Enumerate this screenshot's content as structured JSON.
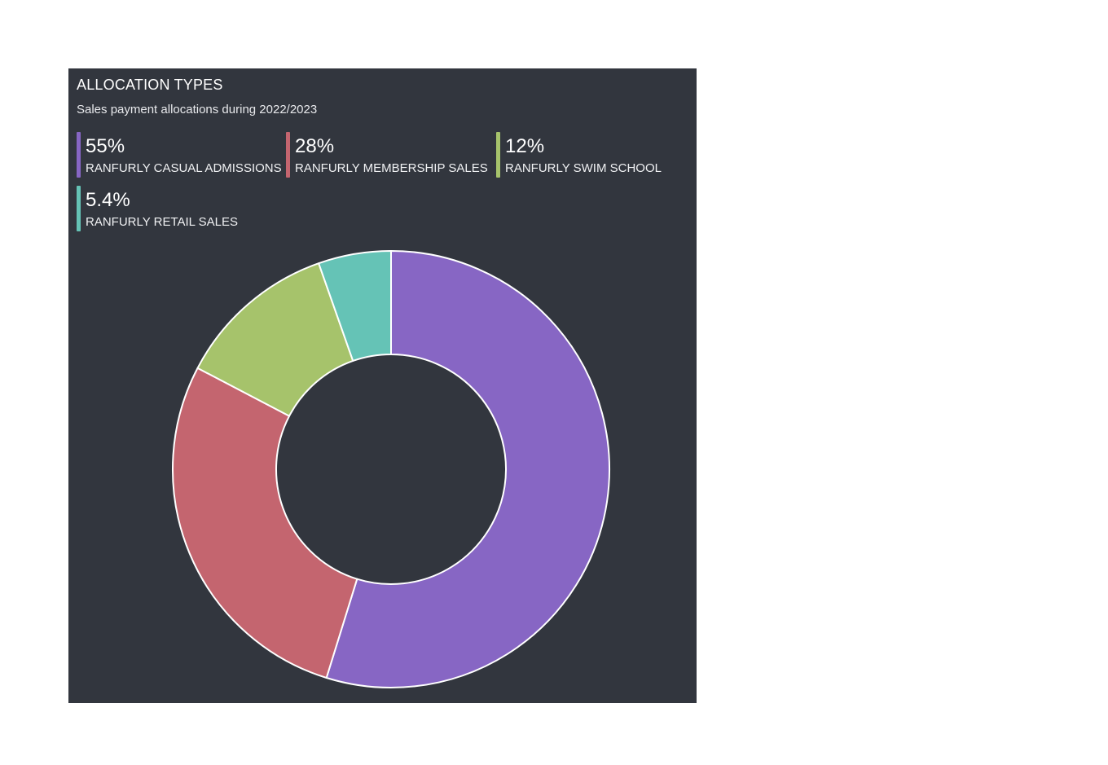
{
  "card": {
    "title": "ALLOCATION TYPES",
    "subtitle": "Sales payment allocations during 2022/2023"
  },
  "chart_data": {
    "type": "pie",
    "variant": "donut",
    "title": "ALLOCATION TYPES",
    "subtitle": "Sales payment allocations during 2022/2023",
    "categories": [
      "RANFURLY CASUAL ADMISSIONS",
      "RANFURLY MEMBERSHIP SALES",
      "RANFURLY SWIM SCHOOL",
      "RANFURLY RETAIL SALES"
    ],
    "values": [
      55,
      28,
      12,
      5.4
    ],
    "value_labels": [
      "55%",
      "28%",
      "12%",
      "5.4%"
    ],
    "colors": [
      "#8766c4",
      "#c4656f",
      "#a6c36b",
      "#65c3b6"
    ],
    "legend_position": "top",
    "start_angle": "12 o'clock",
    "direction": "clockwise"
  },
  "legend": [
    {
      "value": "55%",
      "label": "RANFURLY CASUAL ADMISSIONS"
    },
    {
      "value": "28%",
      "label": "RANFURLY MEMBERSHIP SALES"
    },
    {
      "value": "12%",
      "label": "RANFURLY SWIM SCHOOL"
    },
    {
      "value": "5.4%",
      "label": "RANFURLY RETAIL SALES"
    }
  ],
  "colors": {
    "panel_background": "#32363e",
    "slice_stroke": "#ffffff"
  }
}
